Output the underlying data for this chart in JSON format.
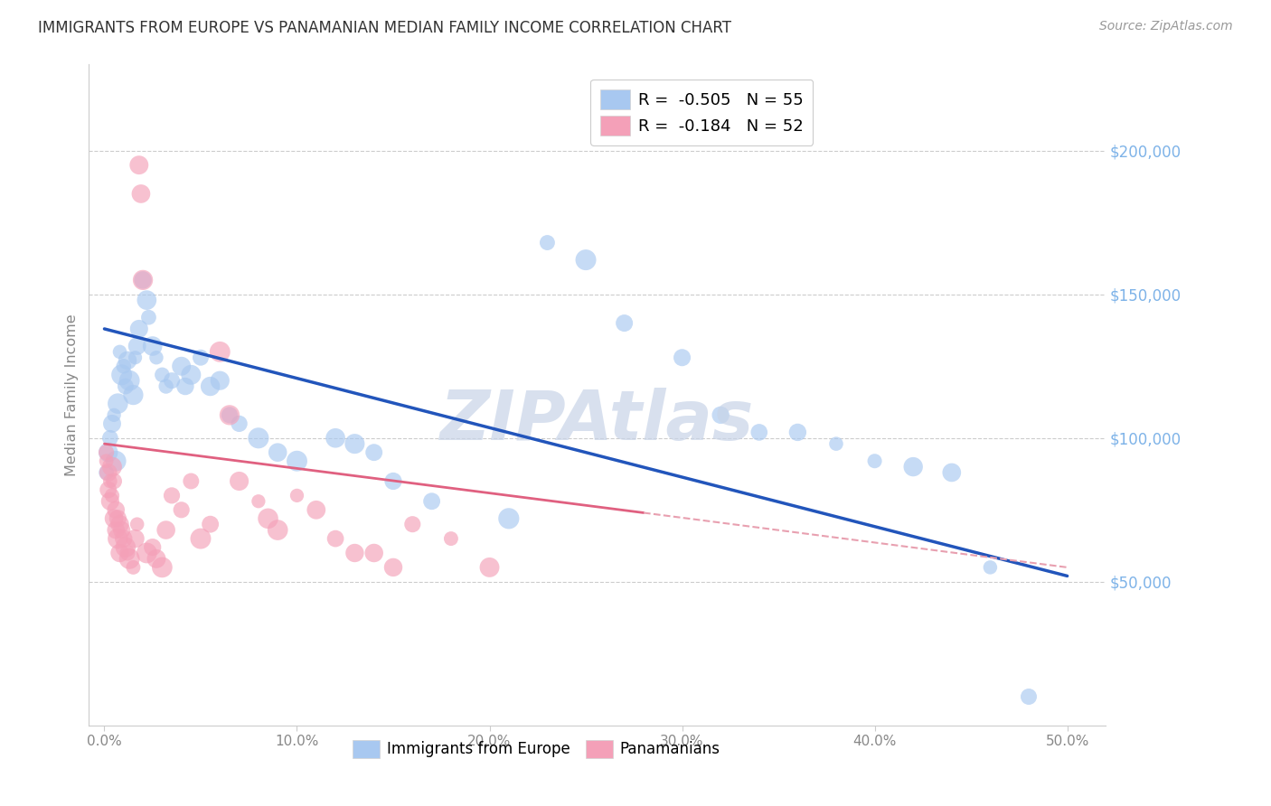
{
  "title": "IMMIGRANTS FROM EUROPE VS PANAMANIAN MEDIAN FAMILY INCOME CORRELATION CHART",
  "source": "Source: ZipAtlas.com",
  "xlabel_ticks": [
    "0.0%",
    "10.0%",
    "20.0%",
    "30.0%",
    "40.0%",
    "50.0%"
  ],
  "xlabel_vals": [
    0.0,
    0.1,
    0.2,
    0.3,
    0.4,
    0.5
  ],
  "ylabel_ticks": [
    "$50,000",
    "$100,000",
    "$150,000",
    "$200,000"
  ],
  "ylabel_vals": [
    50000,
    100000,
    150000,
    200000
  ],
  "ylim": [
    0,
    230000
  ],
  "xlim": [
    -0.008,
    0.52
  ],
  "ylabel": "Median Family Income",
  "legend_entries": [
    {
      "label": "R =  -0.505   N = 55",
      "color": "#A8C8F0"
    },
    {
      "label": "R =  -0.184   N = 52",
      "color": "#F4A0B8"
    }
  ],
  "legend_label_series": [
    "Immigrants from Europe",
    "Panamanians"
  ],
  "watermark": "ZIPAtlas",
  "blue_line": {
    "x0": 0.0,
    "y0": 138000,
    "x1": 0.5,
    "y1": 52000
  },
  "pink_line_solid": {
    "x0": 0.0,
    "y0": 98000,
    "x1": 0.28,
    "y1": 74000
  },
  "pink_line_dashed": {
    "x0": 0.28,
    "y0": 74000,
    "x1": 0.5,
    "y1": 55000
  },
  "blue_scatter": [
    [
      0.001,
      88000
    ],
    [
      0.002,
      95000
    ],
    [
      0.003,
      100000
    ],
    [
      0.004,
      105000
    ],
    [
      0.005,
      108000
    ],
    [
      0.006,
      92000
    ],
    [
      0.007,
      112000
    ],
    [
      0.008,
      130000
    ],
    [
      0.009,
      122000
    ],
    [
      0.01,
      125000
    ],
    [
      0.011,
      118000
    ],
    [
      0.012,
      127000
    ],
    [
      0.013,
      120000
    ],
    [
      0.015,
      115000
    ],
    [
      0.016,
      128000
    ],
    [
      0.017,
      132000
    ],
    [
      0.018,
      138000
    ],
    [
      0.02,
      155000
    ],
    [
      0.022,
      148000
    ],
    [
      0.023,
      142000
    ],
    [
      0.025,
      132000
    ],
    [
      0.027,
      128000
    ],
    [
      0.03,
      122000
    ],
    [
      0.032,
      118000
    ],
    [
      0.035,
      120000
    ],
    [
      0.04,
      125000
    ],
    [
      0.042,
      118000
    ],
    [
      0.045,
      122000
    ],
    [
      0.05,
      128000
    ],
    [
      0.055,
      118000
    ],
    [
      0.06,
      120000
    ],
    [
      0.065,
      108000
    ],
    [
      0.07,
      105000
    ],
    [
      0.08,
      100000
    ],
    [
      0.09,
      95000
    ],
    [
      0.1,
      92000
    ],
    [
      0.12,
      100000
    ],
    [
      0.13,
      98000
    ],
    [
      0.14,
      95000
    ],
    [
      0.15,
      85000
    ],
    [
      0.17,
      78000
    ],
    [
      0.21,
      72000
    ],
    [
      0.23,
      168000
    ],
    [
      0.25,
      162000
    ],
    [
      0.27,
      140000
    ],
    [
      0.3,
      128000
    ],
    [
      0.32,
      108000
    ],
    [
      0.34,
      102000
    ],
    [
      0.36,
      102000
    ],
    [
      0.38,
      98000
    ],
    [
      0.4,
      92000
    ],
    [
      0.42,
      90000
    ],
    [
      0.44,
      88000
    ],
    [
      0.46,
      55000
    ],
    [
      0.48,
      10000
    ]
  ],
  "pink_scatter": [
    [
      0.001,
      95000
    ],
    [
      0.001,
      92000
    ],
    [
      0.002,
      88000
    ],
    [
      0.002,
      82000
    ],
    [
      0.003,
      85000
    ],
    [
      0.003,
      78000
    ],
    [
      0.004,
      90000
    ],
    [
      0.004,
      80000
    ],
    [
      0.005,
      85000
    ],
    [
      0.005,
      72000
    ],
    [
      0.006,
      75000
    ],
    [
      0.006,
      68000
    ],
    [
      0.007,
      72000
    ],
    [
      0.007,
      65000
    ],
    [
      0.008,
      70000
    ],
    [
      0.008,
      60000
    ],
    [
      0.009,
      68000
    ],
    [
      0.01,
      65000
    ],
    [
      0.011,
      62000
    ],
    [
      0.012,
      60000
    ],
    [
      0.013,
      58000
    ],
    [
      0.015,
      55000
    ],
    [
      0.016,
      65000
    ],
    [
      0.017,
      70000
    ],
    [
      0.018,
      195000
    ],
    [
      0.019,
      185000
    ],
    [
      0.02,
      155000
    ],
    [
      0.022,
      60000
    ],
    [
      0.025,
      62000
    ],
    [
      0.027,
      58000
    ],
    [
      0.03,
      55000
    ],
    [
      0.032,
      68000
    ],
    [
      0.035,
      80000
    ],
    [
      0.04,
      75000
    ],
    [
      0.045,
      85000
    ],
    [
      0.05,
      65000
    ],
    [
      0.055,
      70000
    ],
    [
      0.06,
      130000
    ],
    [
      0.065,
      108000
    ],
    [
      0.07,
      85000
    ],
    [
      0.08,
      78000
    ],
    [
      0.085,
      72000
    ],
    [
      0.09,
      68000
    ],
    [
      0.1,
      80000
    ],
    [
      0.11,
      75000
    ],
    [
      0.12,
      65000
    ],
    [
      0.13,
      60000
    ],
    [
      0.14,
      60000
    ],
    [
      0.15,
      55000
    ],
    [
      0.16,
      70000
    ],
    [
      0.18,
      65000
    ],
    [
      0.2,
      55000
    ]
  ],
  "bg_color": "#FFFFFF",
  "grid_color": "#CCCCCC",
  "tick_color": "#888888",
  "right_label_color": "#7EB3E8",
  "title_color": "#333333",
  "source_color": "#999999",
  "blue_dot_color": "#A8C8F0",
  "pink_dot_color": "#F4A0B8",
  "blue_line_color": "#2255BB",
  "pink_line_solid_color": "#E06080",
  "pink_line_dashed_color": "#E8A0B0",
  "watermark_color": "#C8D4E8"
}
